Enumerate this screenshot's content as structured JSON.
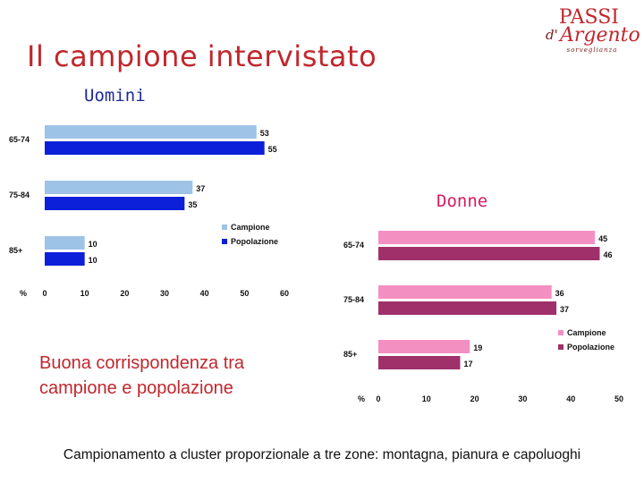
{
  "title": "Il campione intervistato",
  "logo": {
    "line1": "PASSI",
    "prefix": "d'",
    "line2": "Argento",
    "tagline": "sorveglianza"
  },
  "men_label": "Uomini",
  "women_label": "Donne",
  "note": "Buona corrispondenza tra campione e popolazione",
  "footer": "Campionamento a cluster proporzionale a tre zone: montagna, pianura e capoluoghi",
  "colors": {
    "title": "#c0272d",
    "men_label": "#1e2a9a",
    "women_label": "#d81b60",
    "men_campione": "#9dc3e6",
    "men_popolazione": "#0b20d8",
    "women_campione": "#f48fc1",
    "women_popolazione": "#a0306a"
  },
  "chart_data": [
    {
      "type": "bar",
      "orientation": "horizontal",
      "name": "men",
      "categories": [
        "65-74",
        "75-84",
        "85+"
      ],
      "series": [
        {
          "name": "Campione",
          "values": [
            53,
            37,
            10
          ]
        },
        {
          "name": "Popolazione",
          "values": [
            55,
            35,
            10
          ]
        }
      ],
      "xlabel": "%",
      "xlim": [
        0,
        60
      ],
      "xticks": [
        0,
        10,
        20,
        30,
        40,
        50,
        60
      ],
      "legend": "right",
      "grid": false
    },
    {
      "type": "bar",
      "orientation": "horizontal",
      "name": "women",
      "categories": [
        "65-74",
        "75-84",
        "85+"
      ],
      "series": [
        {
          "name": "Campione",
          "values": [
            45,
            36,
            19
          ]
        },
        {
          "name": "Popolazione",
          "values": [
            46,
            37,
            17
          ]
        }
      ],
      "xlabel": "%",
      "xlim": [
        0,
        50
      ],
      "xticks": [
        0,
        10,
        20,
        30,
        40,
        50
      ],
      "legend": "right",
      "grid": false
    }
  ]
}
